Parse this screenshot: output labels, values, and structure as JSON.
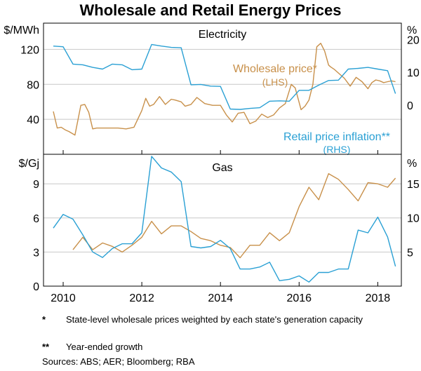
{
  "title": "Wholesale and Retail Energy Prices",
  "notes": [
    {
      "mark": "*",
      "text": "State-level wholesale prices weighted by each state's generation capacity"
    },
    {
      "mark": "**",
      "text": "Year-ended growth"
    }
  ],
  "sources": "Sources: ABS; AER; Bloomberg; RBA",
  "colors": {
    "wholesale": "#c8904a",
    "retail": "#2aa0d4",
    "grid": "#c8c8c8",
    "axis": "#000000"
  },
  "chart_data": [
    {
      "type": "line",
      "title": "Electricity",
      "left_unit": "$/MWh",
      "right_unit": "%",
      "left_ylim": [
        0,
        150
      ],
      "right_ylim": [
        -15,
        25
      ],
      "left_ticks": [
        40,
        80,
        120
      ],
      "right_ticks": [
        0,
        10,
        20
      ],
      "xlim": [
        2009.5,
        2018.6
      ],
      "x_ticks": [
        2010,
        2012,
        2014,
        2016,
        2018
      ],
      "grid": true,
      "annotations": [
        {
          "text": "Wholesale price*",
          "series": "wholesale"
        },
        {
          "text": "(LHS)",
          "series": "wholesale"
        },
        {
          "text": "Retail price inflation**",
          "series": "retail"
        },
        {
          "text": "(RHS)",
          "series": "retail"
        }
      ],
      "series": [
        {
          "key": "wholesale",
          "name": "Wholesale price*",
          "axis": "left",
          "x": [
            2009.75,
            2009.85,
            2009.95,
            2010.05,
            2010.15,
            2010.3,
            2010.45,
            2010.55,
            2010.65,
            2010.75,
            2010.85,
            2011.0,
            2011.2,
            2011.4,
            2011.6,
            2011.8,
            2012.0,
            2012.1,
            2012.2,
            2012.3,
            2012.45,
            2012.6,
            2012.75,
            2012.85,
            2013.0,
            2013.1,
            2013.25,
            2013.4,
            2013.6,
            2013.8,
            2014.0,
            2014.15,
            2014.3,
            2014.45,
            2014.6,
            2014.75,
            2014.9,
            2015.05,
            2015.2,
            2015.35,
            2015.5,
            2015.65,
            2015.8,
            2015.9,
            2016.05,
            2016.15,
            2016.25,
            2016.35,
            2016.45,
            2016.55,
            2016.65,
            2016.75,
            2016.8,
            2016.9,
            2017.0,
            2017.15,
            2017.3,
            2017.45,
            2017.6,
            2017.75,
            2017.85,
            2017.95,
            2018.05,
            2018.15,
            2018.25,
            2018.35,
            2018.45
          ],
          "values": [
            49,
            30,
            31,
            28,
            26,
            22,
            56,
            57,
            48,
            29,
            30,
            30,
            30,
            30,
            29,
            31,
            50,
            64,
            55,
            57,
            66,
            57,
            63,
            62,
            60,
            55,
            57,
            65,
            58,
            56,
            56,
            45,
            37,
            47,
            48,
            35,
            38,
            46,
            42,
            45,
            53,
            58,
            80,
            76,
            51,
            55,
            62,
            80,
            123,
            127,
            118,
            102,
            100,
            97,
            93,
            87,
            78,
            88,
            83,
            75,
            82,
            85,
            84,
            82,
            83,
            84,
            83
          ]
        },
        {
          "key": "retail",
          "name": "Retail price inflation**",
          "axis": "right",
          "x": [
            2009.75,
            2010.0,
            2010.25,
            2010.5,
            2010.75,
            2011.0,
            2011.25,
            2011.5,
            2011.75,
            2012.0,
            2012.25,
            2012.5,
            2012.75,
            2013.0,
            2013.25,
            2013.5,
            2013.75,
            2014.0,
            2014.25,
            2014.5,
            2014.75,
            2015.0,
            2015.25,
            2015.5,
            2015.75,
            2016.0,
            2016.25,
            2016.5,
            2016.75,
            2017.0,
            2017.25,
            2017.5,
            2017.75,
            2018.0,
            2018.25,
            2018.45
          ],
          "values": [
            18,
            17.8,
            12.5,
            12.3,
            11.5,
            11,
            12.5,
            12.3,
            10.8,
            11,
            18.5,
            18,
            17.6,
            17.5,
            6.2,
            6.3,
            5.8,
            5.7,
            -1.2,
            -1.3,
            -1,
            -0.8,
            1.2,
            1.3,
            1.2,
            4.5,
            4.5,
            6.1,
            7.5,
            7.6,
            11,
            11.2,
            11.5,
            11,
            10.5,
            3.5
          ]
        }
      ]
    },
    {
      "type": "line",
      "title": "Gas",
      "left_unit": "$/Gj",
      "right_unit": "%",
      "left_ylim": [
        0,
        11.6
      ],
      "right_ylim": [
        0,
        19.3
      ],
      "left_ticks": [
        0,
        3,
        6,
        9
      ],
      "right_ticks": [
        5,
        10,
        15
      ],
      "xlim": [
        2009.5,
        2018.6
      ],
      "x_ticks": [
        2010,
        2012,
        2014,
        2016,
        2018
      ],
      "x_tick_labels": [
        "2010",
        "2012",
        "2014",
        "2016",
        "2018"
      ],
      "grid": true,
      "series": [
        {
          "key": "wholesale",
          "name": "Wholesale price*",
          "axis": "left",
          "x": [
            2010.25,
            2010.5,
            2010.75,
            2011.0,
            2011.25,
            2011.5,
            2011.75,
            2012.0,
            2012.25,
            2012.5,
            2012.75,
            2013.0,
            2013.25,
            2013.5,
            2013.75,
            2014.0,
            2014.25,
            2014.5,
            2014.75,
            2015.0,
            2015.25,
            2015.5,
            2015.75,
            2016.0,
            2016.25,
            2016.5,
            2016.75,
            2017.0,
            2017.25,
            2017.5,
            2017.75,
            2018.0,
            2018.25,
            2018.45
          ],
          "values": [
            3.2,
            4.3,
            3.2,
            3.8,
            3.5,
            3.0,
            3.6,
            4.3,
            5.7,
            4.6,
            5.3,
            5.3,
            4.8,
            4.2,
            4.0,
            3.6,
            3.4,
            2.5,
            3.6,
            3.6,
            4.7,
            4.0,
            4.7,
            7.0,
            8.7,
            7.6,
            9.9,
            9.4,
            8.5,
            7.5,
            9.1,
            9.0,
            8.7,
            9.5
          ]
        },
        {
          "key": "retail",
          "name": "Retail price inflation**",
          "axis": "right",
          "x": [
            2009.75,
            2010.0,
            2010.25,
            2010.5,
            2010.75,
            2011.0,
            2011.25,
            2011.5,
            2011.75,
            2012.0,
            2012.25,
            2012.5,
            2012.75,
            2013.0,
            2013.25,
            2013.5,
            2013.75,
            2014.0,
            2014.25,
            2014.5,
            2014.75,
            2015.0,
            2015.25,
            2015.5,
            2015.75,
            2016.0,
            2016.25,
            2016.5,
            2016.75,
            2017.0,
            2017.25,
            2017.5,
            2017.75,
            2018.0,
            2018.25,
            2018.45
          ],
          "values": [
            8.5,
            10.5,
            9.8,
            7.5,
            5,
            4.2,
            5.5,
            6.2,
            6.2,
            7.8,
            19,
            17.3,
            16.7,
            15.3,
            5.8,
            5.6,
            5.8,
            6.7,
            5.5,
            2.5,
            2.5,
            2.8,
            3.5,
            0.8,
            1.0,
            1.5,
            0.6,
            2.0,
            2.0,
            2.5,
            2.5,
            8.2,
            7.8,
            10.1,
            7.2,
            2.9
          ]
        }
      ]
    }
  ]
}
